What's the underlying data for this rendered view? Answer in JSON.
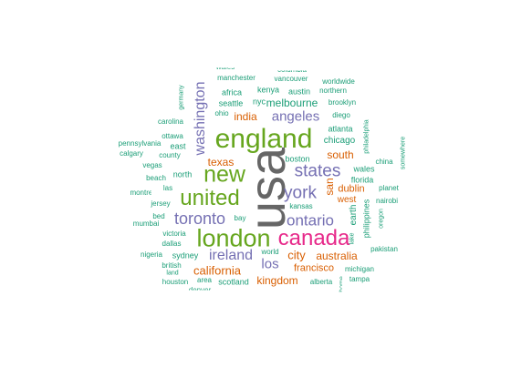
{
  "colors": {
    "teal": "#1b9e77",
    "orange": "#d95f02",
    "purple": "#7570b3",
    "pink": "#e7298a",
    "green": "#66a61e",
    "gray": "#666666"
  },
  "words": [
    {
      "text": "usa",
      "color": "gray"
    },
    {
      "text": "england",
      "color": "green"
    },
    {
      "text": "london",
      "color": "green"
    },
    {
      "text": "canada",
      "color": "pink"
    },
    {
      "text": "united",
      "color": "green"
    },
    {
      "text": "new",
      "color": "green"
    },
    {
      "text": "toronto",
      "color": "purple"
    },
    {
      "text": "washington",
      "color": "purple"
    },
    {
      "text": "states",
      "color": "purple"
    },
    {
      "text": "york",
      "color": "purple"
    },
    {
      "text": "ontario",
      "color": "purple"
    },
    {
      "text": "ireland",
      "color": "purple"
    },
    {
      "text": "angeles",
      "color": "purple"
    },
    {
      "text": "los",
      "color": "purple"
    },
    {
      "text": "california",
      "color": "orange"
    },
    {
      "text": "city",
      "color": "orange"
    },
    {
      "text": "australia",
      "color": "orange"
    },
    {
      "text": "kingdom",
      "color": "orange"
    },
    {
      "text": "san",
      "color": "orange"
    },
    {
      "text": "india",
      "color": "orange"
    },
    {
      "text": "texas",
      "color": "orange"
    },
    {
      "text": "south",
      "color": "orange"
    },
    {
      "text": "francisco",
      "color": "orange"
    },
    {
      "text": "dublin",
      "color": "orange"
    },
    {
      "text": "west",
      "color": "orange"
    },
    {
      "text": "melbourne",
      "color": "teal"
    },
    {
      "text": "chicago",
      "color": "teal"
    },
    {
      "text": "atlanta",
      "color": "teal"
    },
    {
      "text": "boston",
      "color": "teal"
    },
    {
      "text": "florida",
      "color": "teal"
    },
    {
      "text": "wales",
      "color": "teal"
    },
    {
      "text": "earth",
      "color": "teal"
    },
    {
      "text": "kansas",
      "color": "teal"
    },
    {
      "text": "nairobi",
      "color": "teal"
    },
    {
      "text": "planet",
      "color": "teal"
    },
    {
      "text": "philippines",
      "color": "teal"
    },
    {
      "text": "oregon",
      "color": "teal"
    },
    {
      "text": "lake",
      "color": "teal"
    },
    {
      "text": "pakistan",
      "color": "teal"
    },
    {
      "text": "michigan",
      "color": "teal"
    },
    {
      "text": "alberta",
      "color": "teal"
    },
    {
      "text": "tampa",
      "color": "teal"
    },
    {
      "text": "philadelphia",
      "color": "teal"
    },
    {
      "text": "china",
      "color": "teal"
    },
    {
      "text": "somewhere",
      "color": "teal"
    },
    {
      "text": "diego",
      "color": "teal"
    },
    {
      "text": "brooklyn",
      "color": "teal"
    },
    {
      "text": "northern",
      "color": "teal"
    },
    {
      "text": "worldwide",
      "color": "teal"
    },
    {
      "text": "austin",
      "color": "teal"
    },
    {
      "text": "kenya",
      "color": "teal"
    },
    {
      "text": "nyc",
      "color": "teal"
    },
    {
      "text": "vancouver",
      "color": "teal"
    },
    {
      "text": "columbia",
      "color": "teal"
    },
    {
      "text": "manchester",
      "color": "teal"
    },
    {
      "text": "wales",
      "color": "teal"
    },
    {
      "text": "africa",
      "color": "teal"
    },
    {
      "text": "seattle",
      "color": "teal"
    },
    {
      "text": "ohio",
      "color": "teal"
    },
    {
      "text": "germany",
      "color": "teal"
    },
    {
      "text": "carolina",
      "color": "teal"
    },
    {
      "text": "ottawa",
      "color": "teal"
    },
    {
      "text": "pennsylvania",
      "color": "teal"
    },
    {
      "text": "east",
      "color": "teal"
    },
    {
      "text": "calgary",
      "color": "teal"
    },
    {
      "text": "county",
      "color": "teal"
    },
    {
      "text": "vegas",
      "color": "teal"
    },
    {
      "text": "north",
      "color": "teal"
    },
    {
      "text": "beach",
      "color": "teal"
    },
    {
      "text": "las",
      "color": "teal"
    },
    {
      "text": "montreal",
      "color": "teal"
    },
    {
      "text": "jersey",
      "color": "teal"
    },
    {
      "text": "bed",
      "color": "teal"
    },
    {
      "text": "mumbai",
      "color": "teal"
    },
    {
      "text": "bay",
      "color": "teal"
    },
    {
      "text": "victoria",
      "color": "teal"
    },
    {
      "text": "dallas",
      "color": "teal"
    },
    {
      "text": "nigeria",
      "color": "teal"
    },
    {
      "text": "sydney",
      "color": "teal"
    },
    {
      "text": "world",
      "color": "teal"
    },
    {
      "text": "british",
      "color": "teal"
    },
    {
      "text": "land",
      "color": "teal"
    },
    {
      "text": "houston",
      "color": "teal"
    },
    {
      "text": "area",
      "color": "teal"
    },
    {
      "text": "scotland",
      "color": "teal"
    },
    {
      "text": "denver",
      "color": "teal"
    },
    {
      "text": "home",
      "color": "teal"
    }
  ]
}
